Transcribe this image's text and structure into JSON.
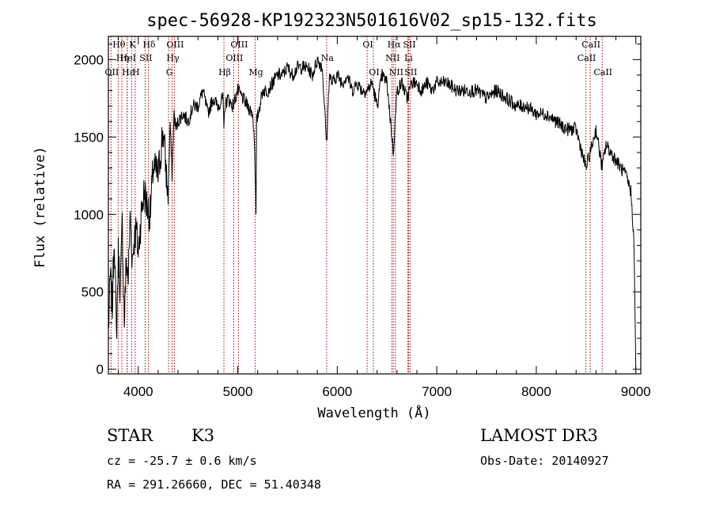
{
  "chart_data": {
    "type": "line",
    "title": "spec-56928-KP192323N501616V02_sp15-132.fits",
    "xlabel": "Wavelength (Å)",
    "ylabel": "Flux (relative)",
    "xlim": [
      3700,
      9050
    ],
    "ylim": [
      -30,
      2150
    ],
    "xticks": [
      4000,
      5000,
      6000,
      7000,
      8000,
      9000
    ],
    "xtick_labels": [
      "4000",
      "5000",
      "6000",
      "7000",
      "8000",
      "9000"
    ],
    "yticks": [
      0,
      500,
      1000,
      1500,
      2000
    ],
    "ytick_labels": [
      "0",
      "500",
      "1000",
      "1500",
      "2000"
    ],
    "series": [
      {
        "name": "flux",
        "x": [
          3700,
          3720,
          3740,
          3760,
          3780,
          3800,
          3820,
          3840,
          3860,
          3880,
          3900,
          3920,
          3940,
          3960,
          3980,
          4000,
          4030,
          4060,
          4090,
          4120,
          4150,
          4200,
          4250,
          4300,
          4320,
          4340,
          4360,
          4380,
          4400,
          4450,
          4500,
          4550,
          4600,
          4650,
          4700,
          4750,
          4800,
          4850,
          4861,
          4870,
          4900,
          4950,
          5000,
          5050,
          5100,
          5150,
          5170,
          5183,
          5190,
          5220,
          5250,
          5300,
          5350,
          5400,
          5450,
          5500,
          5550,
          5600,
          5650,
          5700,
          5750,
          5800,
          5850,
          5893,
          5920,
          5950,
          6000,
          6050,
          6100,
          6150,
          6200,
          6250,
          6300,
          6350,
          6400,
          6450,
          6500,
          6563,
          6600,
          6650,
          6700,
          6750,
          6800,
          6850,
          6900,
          6950,
          7000,
          7100,
          7200,
          7300,
          7400,
          7500,
          7600,
          7700,
          7800,
          7900,
          8000,
          8100,
          8200,
          8300,
          8400,
          8498,
          8542,
          8600,
          8662,
          8700,
          8750,
          8800,
          8850,
          8900,
          8950,
          8980,
          9000
        ],
        "y": [
          250,
          600,
          400,
          900,
          200,
          750,
          500,
          950,
          300,
          700,
          600,
          1000,
          700,
          850,
          900,
          750,
          1000,
          1150,
          1050,
          1000,
          1300,
          1250,
          1550,
          1100,
          1600,
          1250,
          1650,
          1550,
          1600,
          1650,
          1600,
          1700,
          1700,
          1800,
          1650,
          1750,
          1700,
          1750,
          1550,
          1700,
          1750,
          1700,
          1800,
          1750,
          1700,
          1650,
          1450,
          1000,
          1600,
          1700,
          1800,
          1800,
          1850,
          1900,
          1900,
          1950,
          1900,
          1950,
          1950,
          1950,
          1900,
          2000,
          1950,
          1450,
          1900,
          1850,
          1900,
          1850,
          1900,
          1800,
          1850,
          1800,
          1800,
          1850,
          1700,
          1900,
          1850,
          1400,
          1800,
          1850,
          1750,
          1850,
          1850,
          1800,
          1850,
          1800,
          1850,
          1850,
          1800,
          1800,
          1800,
          1750,
          1800,
          1750,
          1700,
          1700,
          1650,
          1650,
          1600,
          1550,
          1550,
          1300,
          1400,
          1550,
          1300,
          1450,
          1400,
          1350,
          1300,
          1250,
          1150,
          850,
          0
        ]
      }
    ],
    "line_markers": [
      {
        "label": "Hθ",
        "wavelength": 3798,
        "row": 1
      },
      {
        "label": "OII",
        "wavelength": 3727,
        "row": 3
      },
      {
        "label": "Hη",
        "wavelength": 3835,
        "row": 2
      },
      {
        "label": "HeⅠ",
        "wavelength": 3889,
        "row": 2
      },
      {
        "label": "Hε",
        "wavelength": 3889,
        "row": 3
      },
      {
        "label": "K",
        "wavelength": 3934,
        "row": 1
      },
      {
        "label": "H",
        "wavelength": 3969,
        "row": 3
      },
      {
        "label": "SII",
        "wavelength": 4069,
        "row": 2
      },
      {
        "label": "Hδ",
        "wavelength": 4102,
        "row": 1
      },
      {
        "label": "G",
        "wavelength": 4305,
        "row": 3
      },
      {
        "label": "OIII",
        "wavelength": 4363,
        "row": 1
      },
      {
        "label": "Hγ",
        "wavelength": 4340,
        "row": 2
      },
      {
        "label": "Hβ",
        "wavelength": 4861,
        "row": 3
      },
      {
        "label": "OIII",
        "wavelength": 5007,
        "row": 1
      },
      {
        "label": "OIII",
        "wavelength": 4959,
        "row": 2
      },
      {
        "label": "Mg",
        "wavelength": 5175,
        "row": 3
      },
      {
        "label": "Na",
        "wavelength": 5893,
        "row": 2
      },
      {
        "label": "OI",
        "wavelength": 6300,
        "row": 1
      },
      {
        "label": "OI",
        "wavelength": 6363,
        "row": 3
      },
      {
        "label": "Hα",
        "wavelength": 6563,
        "row": 1
      },
      {
        "label": "NII",
        "wavelength": 6548,
        "row": 2
      },
      {
        "label": "NII",
        "wavelength": 6584,
        "row": 3
      },
      {
        "label": "SII",
        "wavelength": 6717,
        "row": 1
      },
      {
        "label": "Li",
        "wavelength": 6708,
        "row": 2
      },
      {
        "label": "SII",
        "wavelength": 6731,
        "row": 3
      },
      {
        "label": "CaII",
        "wavelength": 8542,
        "row": 1
      },
      {
        "label": "CaII",
        "wavelength": 8498,
        "row": 2
      },
      {
        "label": "CaII",
        "wavelength": 8662,
        "row": 3
      }
    ]
  },
  "info": {
    "class": "STAR",
    "subclass": "K3",
    "survey": "LAMOST DR3",
    "cz": "cz = -25.7 ± 0.6 km/s",
    "obs_date": "Obs-Date: 20140927",
    "coords": "RA = 291.26660, DEC =  51.40348"
  }
}
